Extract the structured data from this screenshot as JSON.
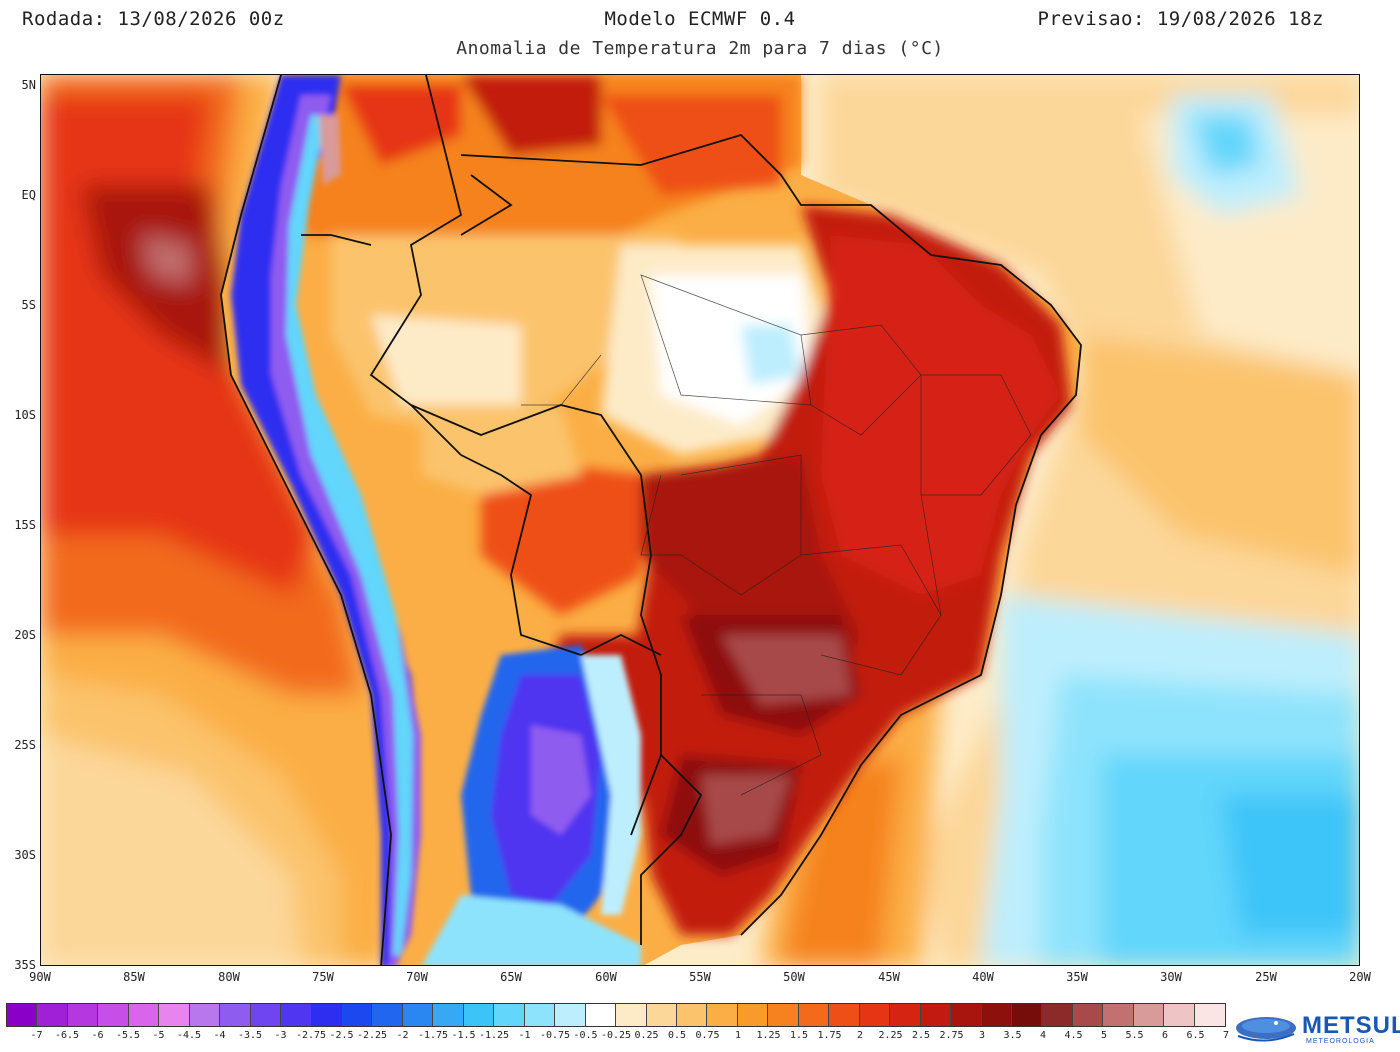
{
  "header": {
    "run_label": "Rodada: 13/08/2026 00z",
    "model_label": "Modelo ECMWF 0.4",
    "valid_label": "Previsao: 19/08/2026 18z",
    "subtitle": "Anomalia de Temperatura 2m para 7 dias (°C)"
  },
  "axes": {
    "lat_labels": [
      "5N",
      "EQ",
      "5S",
      "10S",
      "15S",
      "20S",
      "25S",
      "30S",
      "35S"
    ],
    "lon_labels": [
      "90W",
      "85W",
      "80W",
      "75W",
      "70W",
      "65W",
      "60W",
      "55W",
      "50W",
      "45W",
      "40W",
      "35W",
      "30W",
      "25W",
      "20W"
    ]
  },
  "colorbar": {
    "colors": [
      "#8a00c8",
      "#a020d8",
      "#b437e0",
      "#c74ee6",
      "#d865ea",
      "#e884ee",
      "#b877ec",
      "#8f5cf0",
      "#6f45f2",
      "#5036f0",
      "#2e2ef0",
      "#1c48f0",
      "#2066ee",
      "#2a86f0",
      "#36a8f4",
      "#3cc4f8",
      "#62d6fb",
      "#8ee3fc",
      "#bdeefd",
      "#ffffff",
      "#fdebc8",
      "#fcd79a",
      "#fbc36c",
      "#fbae45",
      "#f89a2c",
      "#f5821f",
      "#f26a1a",
      "#ee4f16",
      "#e63514",
      "#d62412",
      "#c21a10",
      "#a8140e",
      "#8e100c",
      "#760d0a",
      "#8c2a2a",
      "#a84a4a",
      "#c27070",
      "#d99a9a",
      "#eec4c4",
      "#fbe4e4"
    ],
    "tick_labels": [
      "-7",
      "-6.5",
      "-6",
      "-5.5",
      "-5",
      "-4.5",
      "-4",
      "-3.5",
      "-3",
      "-2.75",
      "-2.5",
      "-2.25",
      "-2",
      "-1.75",
      "-1.5",
      "-1.25",
      "-1",
      "-0.75",
      "-0.5",
      "-0.25",
      "0.25",
      "0.5",
      "0.75",
      "1",
      "1.25",
      "1.5",
      "1.75",
      "2",
      "2.25",
      "2.5",
      "2.75",
      "3",
      "3.5",
      "4",
      "4.5",
      "5",
      "5.5",
      "6",
      "6.5",
      "7"
    ]
  },
  "logo": {
    "name": "METSUL",
    "tagline": "METEOROLOGIA"
  }
}
